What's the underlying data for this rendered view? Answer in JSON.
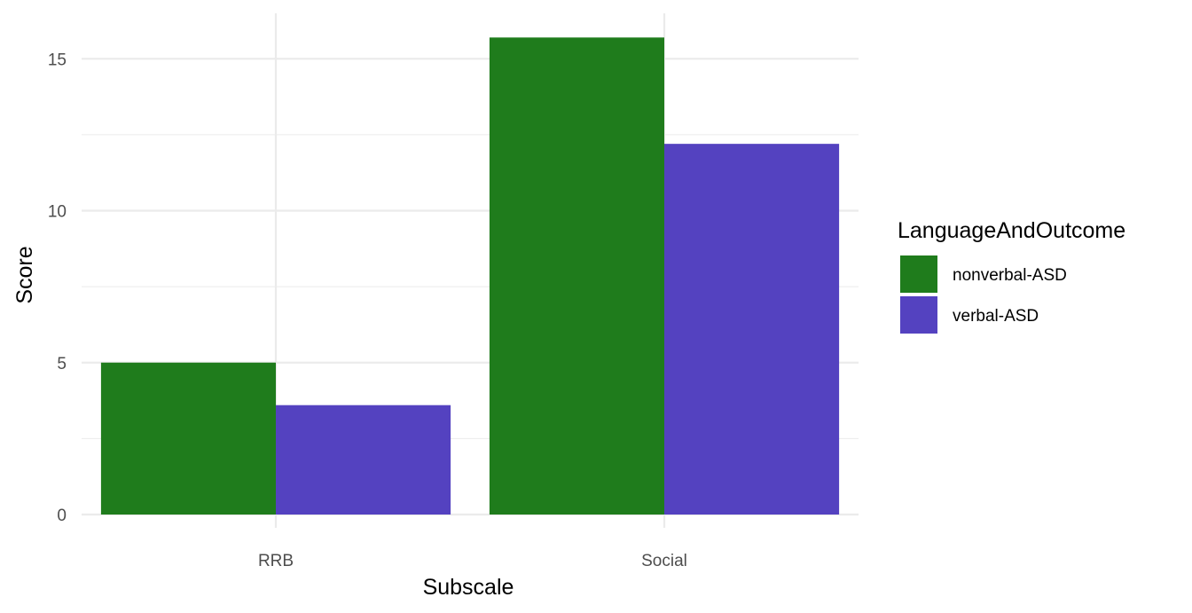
{
  "chart_data": {
    "type": "bar",
    "categories": [
      "RRB",
      "Social"
    ],
    "series": [
      {
        "name": "nonverbal-ASD",
        "values": [
          5.0,
          15.7
        ],
        "color": "#1f7c1c"
      },
      {
        "name": "verbal-ASD",
        "values": [
          3.6,
          12.2
        ],
        "color": "#5442c0"
      }
    ],
    "xlabel": "Subscale",
    "ylabel": "Score",
    "ylim": [
      0,
      16
    ],
    "yticks": [
      0,
      5,
      10,
      15
    ],
    "legend": {
      "title": "LanguageAndOutcome",
      "position": "right"
    },
    "grid": true
  }
}
